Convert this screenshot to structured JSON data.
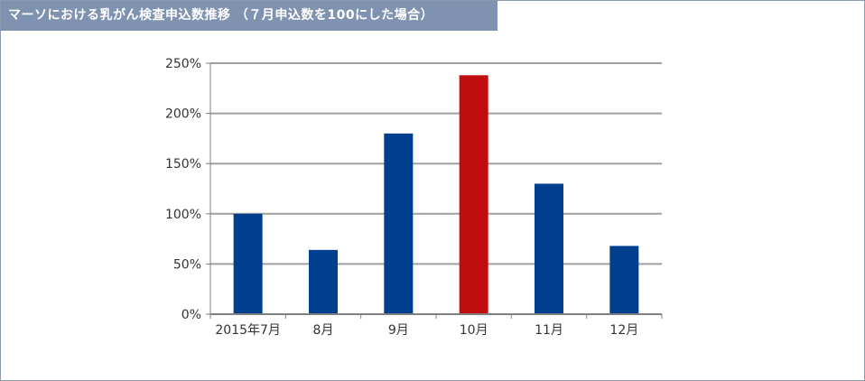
{
  "title": "マーソにおける乳がん検査申込数推移 （７月申込数を100にした場合）",
  "colors": {
    "title_bg": "#7f93b1",
    "bar_default": "#003e8e",
    "bar_highlight": "#c00d0d",
    "grid": "#a0a0a0",
    "axis": "#808080"
  },
  "chart_data": {
    "type": "bar",
    "categories": [
      "2015年7月",
      "8月",
      "9月",
      "10月",
      "11月",
      "12月"
    ],
    "values": [
      100,
      64,
      180,
      238,
      130,
      68
    ],
    "highlight_index": 3,
    "ylim": [
      0,
      250
    ],
    "yticks": [
      0,
      50,
      100,
      150,
      200,
      250
    ],
    "ytick_labels": [
      "0%",
      "50%",
      "100%",
      "150%",
      "200%",
      "250%"
    ],
    "grid": true,
    "legend": "none"
  }
}
